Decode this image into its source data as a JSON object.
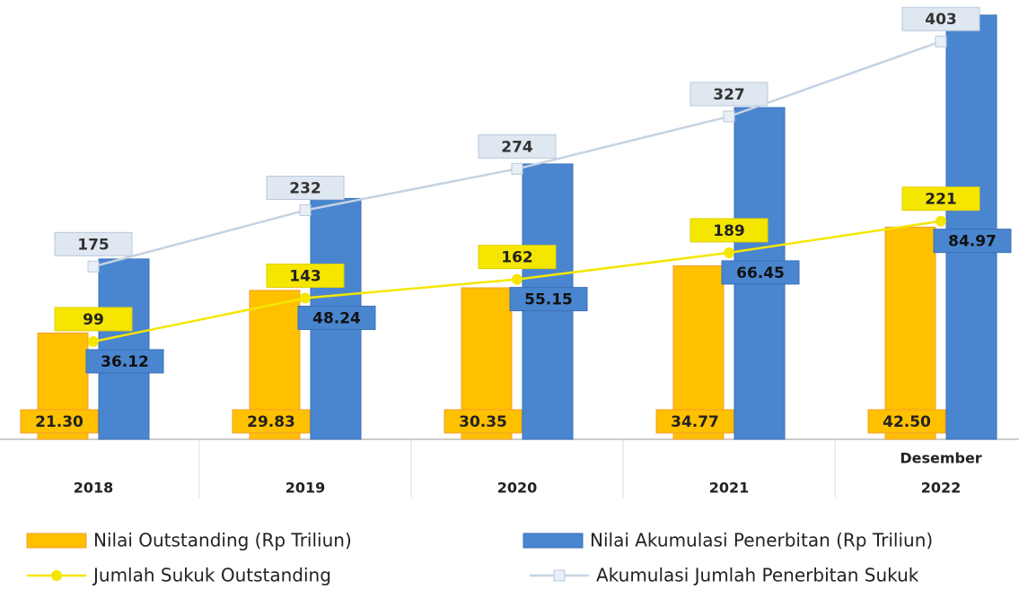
{
  "chart_data": {
    "type": "bar",
    "categories": [
      "2018",
      "2019",
      "2020",
      "2021",
      "2022"
    ],
    "annotation": "Desember",
    "ylim": [
      0,
      88
    ],
    "y2lim": [
      0,
      445
    ],
    "series": [
      {
        "name": "Nilai Outstanding (Rp Triliun)",
        "type": "bar",
        "color": "#ffc000",
        "values": [
          21.3,
          29.83,
          30.35,
          34.77,
          42.5
        ],
        "value_labels": [
          "21.30",
          "29.83",
          "30.35",
          "34.77",
          "42.50"
        ]
      },
      {
        "name": "Nilai Akumulasi Penerbitan (Rp Triliun)",
        "type": "bar",
        "color": "#4a86d0",
        "values": [
          36.12,
          48.24,
          55.15,
          66.45,
          84.97
        ]
      },
      {
        "name": "Jumlah Sukuk Outstanding",
        "type": "line",
        "axis": "y2",
        "color": "#f5e600",
        "values": [
          99,
          143,
          162,
          189,
          221
        ]
      },
      {
        "name": "Akumulasi Jumlah Penerbitan Sukuk",
        "type": "line",
        "axis": "y2",
        "color": "#c5d3e3",
        "values": [
          175,
          232,
          274,
          327,
          403
        ]
      }
    ]
  }
}
